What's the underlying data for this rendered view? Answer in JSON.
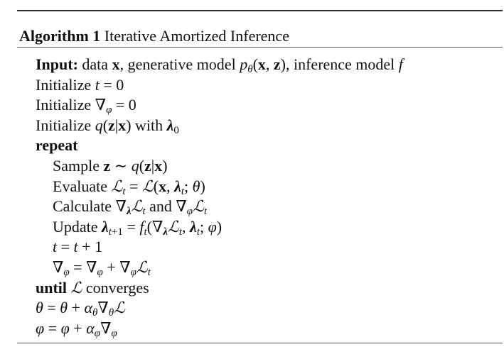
{
  "title": {
    "label": "Algorithm 1",
    "text": "Iterative Amortized Inference"
  },
  "lines": {
    "input_keyword": "Input:",
    "input_text_1": "data",
    "input_text_2": ", generative model",
    "input_text_3": ", inference model",
    "init_label": "Initialize",
    "with_text": "with",
    "repeat_keyword": "repeat",
    "sample_label": "Sample",
    "evaluate_label": "Evaluate",
    "calculate_label": "Calculate",
    "and_text": "and",
    "update_label": "Update",
    "until_keyword": "until",
    "converges_text": "converges"
  }
}
